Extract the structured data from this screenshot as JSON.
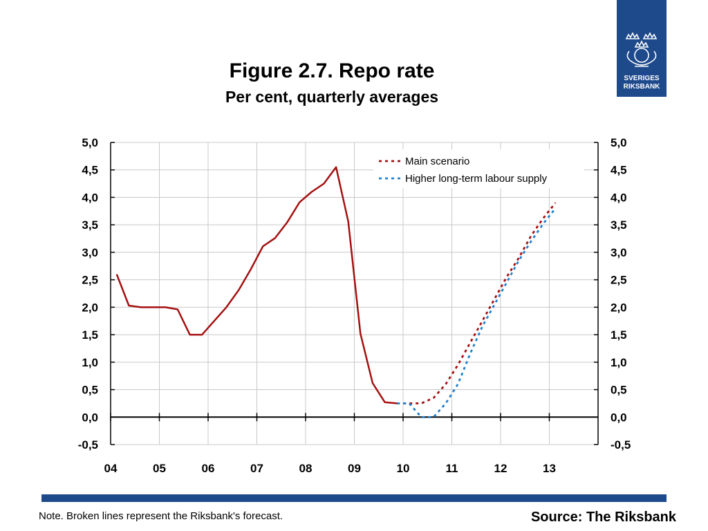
{
  "header": {
    "title": "Figure 2.7. Repo rate",
    "subtitle": "Per cent, quarterly averages"
  },
  "logo": {
    "line1": "SVERIGES",
    "line2": "RIKSBANK",
    "icon": "crown-seal-icon",
    "color": "#1e4a8c"
  },
  "footer": {
    "note": "Note. Broken lines represent the Riksbank's forecast.",
    "source": "Source: The Riksbank",
    "bar_color": "#1e4a8c"
  },
  "chart_data": {
    "type": "line",
    "title": "Figure 2.7. Repo rate",
    "subtitle": "Per cent, quarterly averages",
    "xlabel": "",
    "ylabel": "",
    "x_tick_labels": [
      "04",
      "05",
      "06",
      "07",
      "08",
      "09",
      "10",
      "11",
      "12",
      "13"
    ],
    "x_range": [
      2004.0,
      2014.0
    ],
    "y_ticks": [
      "5,0",
      "4,5",
      "4,0",
      "3,5",
      "3,0",
      "2,5",
      "2,0",
      "1,5",
      "1,0",
      "0,5",
      "0,0",
      "-0,5"
    ],
    "ylim": [
      -0.5,
      5.0
    ],
    "grid": true,
    "legend_position": "top-right",
    "series": [
      {
        "name": "",
        "style": "solid",
        "color": "#a50f0f",
        "x": [
          2004.125,
          2004.375,
          2004.625,
          2004.875,
          2005.125,
          2005.375,
          2005.625,
          2005.875,
          2006.125,
          2006.375,
          2006.625,
          2006.875,
          2007.125,
          2007.375,
          2007.625,
          2007.875,
          2008.125,
          2008.375,
          2008.625,
          2008.875,
          2009.125,
          2009.375,
          2009.625,
          2009.875
        ],
        "values": [
          2.6,
          2.03,
          2.0,
          2.0,
          2.0,
          1.96,
          1.5,
          1.5,
          1.75,
          2.0,
          2.31,
          2.69,
          3.11,
          3.26,
          3.55,
          3.91,
          4.1,
          4.25,
          4.55,
          3.56,
          1.52,
          0.62,
          0.27,
          0.25
        ]
      },
      {
        "name": "Main scenario",
        "style": "dotted",
        "color": "#a50f0f",
        "x": [
          2009.875,
          2010.125,
          2010.375,
          2010.625,
          2010.875,
          2011.125,
          2011.375,
          2011.625,
          2011.875,
          2012.125,
          2012.375,
          2012.625,
          2012.875,
          2013.125
        ],
        "values": [
          0.25,
          0.25,
          0.25,
          0.35,
          0.6,
          0.95,
          1.35,
          1.75,
          2.15,
          2.55,
          2.9,
          3.3,
          3.62,
          3.9
        ]
      },
      {
        "name": "Higher long-term labour supply",
        "style": "dotted",
        "color": "#1f7fcf",
        "x": [
          2009.875,
          2010.125,
          2010.375,
          2010.625,
          2010.875,
          2011.125,
          2011.375,
          2011.625,
          2011.875,
          2012.125,
          2012.375,
          2012.625,
          2012.875,
          2013.125
        ],
        "values": [
          0.25,
          0.25,
          0.0,
          0.0,
          0.25,
          0.6,
          1.15,
          1.65,
          2.05,
          2.45,
          2.85,
          3.2,
          3.52,
          3.8
        ]
      }
    ]
  }
}
